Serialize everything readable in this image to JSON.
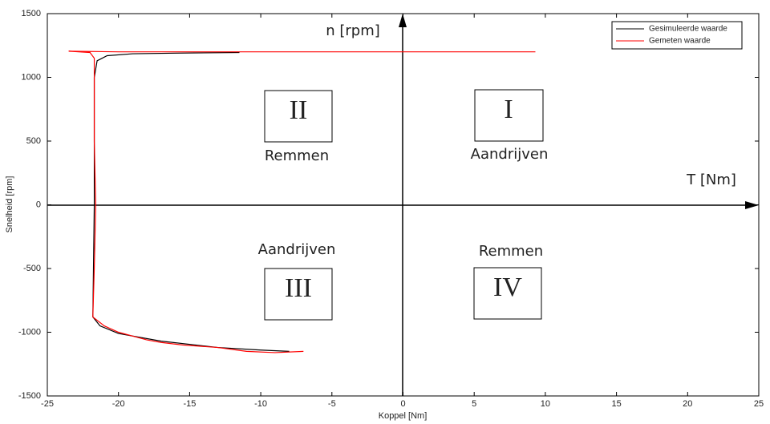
{
  "chart_data": {
    "type": "line",
    "xlabel": "Koppel [Nm]",
    "ylabel": "Snelheid [rpm]",
    "xlim": [
      -25,
      25
    ],
    "xticks": [
      -25,
      -20,
      -15,
      -10,
      -5,
      0,
      5,
      10,
      15,
      20,
      25
    ],
    "ylim": [
      -1500,
      1500
    ],
    "yticks": [
      -1500,
      -1000,
      -500,
      0,
      500,
      1000,
      1500
    ],
    "grid": false,
    "legend": "upper right",
    "series": [
      {
        "name": "Gesimuleerde waarde",
        "color": "#000000",
        "x": [
          -11.5,
          -16,
          -19,
          -20.8,
          -21.5,
          -21.7,
          -21.7,
          -21.8,
          -21.3,
          -20,
          -17,
          -13,
          -10,
          -8
        ],
        "values": [
          1195,
          1190,
          1185,
          1170,
          1130,
          1000,
          0,
          -880,
          -950,
          -1010,
          -1070,
          -1120,
          -1140,
          -1150
        ]
      },
      {
        "name": "Gemeten waarde",
        "color": "#ff0000",
        "x": [
          9.3,
          0,
          -10,
          -20,
          -23.5,
          -22,
          -21.7,
          -21.7,
          -21.6,
          -21.7,
          -21.8,
          -21,
          -20,
          -19,
          -18,
          -17,
          -15.5,
          -13,
          -11,
          -9,
          -7
        ],
        "values": [
          1200,
          1200,
          1200,
          1200,
          1205,
          1195,
          1150,
          500,
          0,
          -500,
          -880,
          -950,
          -1000,
          -1030,
          -1060,
          -1080,
          -1100,
          -1120,
          -1150,
          -1160,
          -1150
        ]
      }
    ],
    "annotations": [
      "n [rpm]",
      "T [Nm]",
      "II",
      "I",
      "III",
      "IV",
      "Remmen",
      "Aandrijven",
      "Aandrijven",
      "Remmen"
    ]
  }
}
